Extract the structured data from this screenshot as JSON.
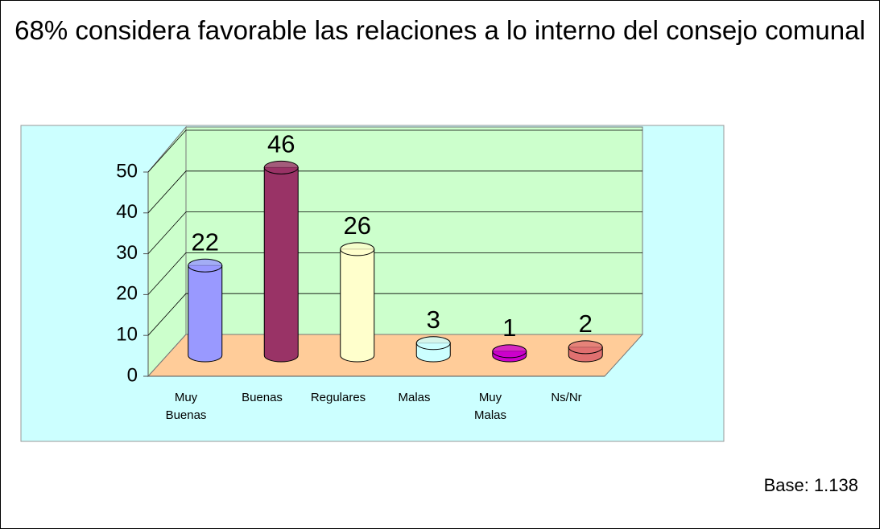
{
  "chart_data": {
    "type": "bar3d",
    "title": "68% considera favorable las relaciones a lo interno del consejo comunal",
    "categories": [
      "Muy Buenas",
      "Buenas",
      "Regulares",
      "Malas",
      "Muy Malas",
      "Ns/Nr"
    ],
    "values": [
      22,
      46,
      26,
      3,
      1,
      2
    ],
    "colors": [
      "#9999ff",
      "#993366",
      "#ffffcc",
      "#ccffff",
      "#cc00cc",
      "#e07070"
    ],
    "ylim": [
      0,
      50
    ],
    "yticks": [
      0,
      10,
      20,
      30,
      40,
      50
    ],
    "grid": true,
    "note": "Base: 1.138"
  }
}
